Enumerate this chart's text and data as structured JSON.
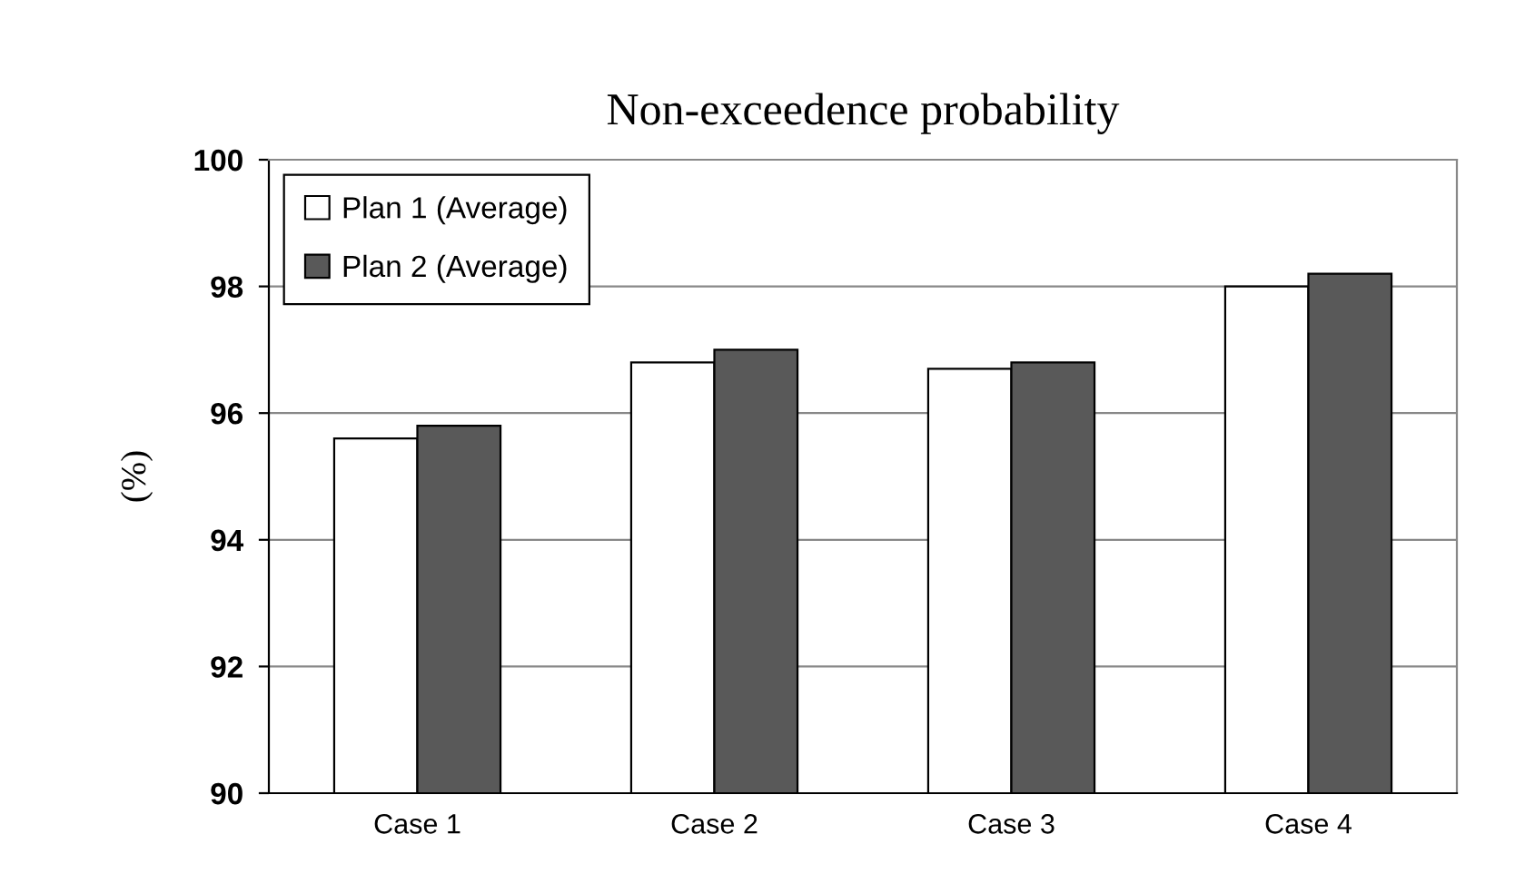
{
  "chart_data": {
    "type": "bar",
    "title": "Non-exceedence probability",
    "ylabel": "(%)",
    "categories": [
      "Case 1",
      "Case 2",
      "Case 3",
      "Case 4"
    ],
    "series": [
      {
        "name": "Plan 1 (Average)",
        "color": "#ffffff",
        "values": [
          95.6,
          96.8,
          96.7,
          98.0
        ]
      },
      {
        "name": "Plan 2 (Average)",
        "color": "#595959",
        "values": [
          95.8,
          97.0,
          96.8,
          98.2
        ]
      }
    ],
    "ylim": [
      90,
      100
    ],
    "yticks": [
      90,
      92,
      94,
      96,
      98,
      100
    ],
    "grid": "y",
    "legend": "top left"
  }
}
